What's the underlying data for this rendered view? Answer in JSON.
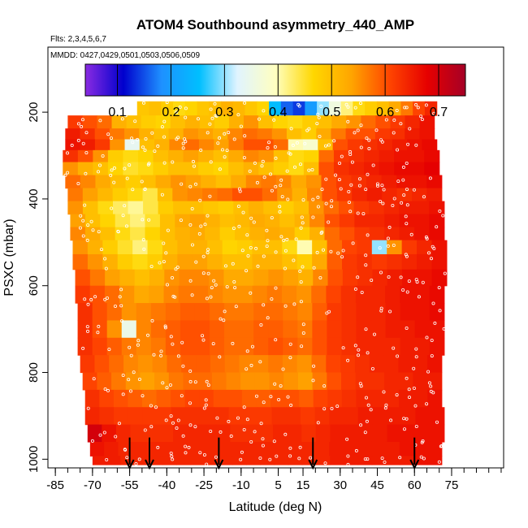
{
  "chart_data": {
    "type": "heatmap",
    "title": "ATOM4 Southbound asymmetry_440_AMP",
    "flights_label": "Flts: 2,3,4,5,6,7",
    "dates_label": "MMDD: 0427,0429,0501,0503,0506,0509",
    "xlabel": "Latitude (deg N)",
    "ylabel": "PSXC (mbar)",
    "xlim": [
      -88,
      96
    ],
    "ylim": [
      1020,
      50
    ],
    "x_ticks": [
      "-85",
      "-70",
      "-55",
      "-40",
      "-25",
      "-10",
      "5",
      "15",
      "30",
      "45",
      "60",
      "75"
    ],
    "x_tick_values": [
      -85,
      -70,
      -55,
      -40,
      -25,
      -10,
      5,
      15,
      30,
      45,
      60,
      75
    ],
    "x_minor_step": 5,
    "y_ticks": [
      "200",
      "400",
      "600",
      "800",
      "1000"
    ],
    "y_tick_values": [
      200,
      400,
      600,
      800,
      1000
    ],
    "colorbar": {
      "min": 0.04,
      "max": 0.75,
      "tick_labels": [
        "0.1",
        "0.2",
        "0.3",
        "0.4",
        "0.5",
        "0.6",
        "0.7"
      ],
      "tick_values": [
        0.1,
        0.2,
        0.3,
        0.4,
        0.5,
        0.6,
        0.7
      ],
      "colors": [
        "#8a2be2",
        "#0000cd",
        "#1e90ff",
        "#00bfff",
        "#e0f4ff",
        "#ffffc0",
        "#ffd700",
        "#ffa500",
        "#ff4500",
        "#e60000",
        "#a50026"
      ]
    },
    "layers": [
      {
        "p": 190,
        "lat_min": -52,
        "lat_max": 69,
        "values": [
          0.49,
          0.5,
          0.48,
          0.46,
          0.47,
          0.49,
          0.5,
          0.52,
          0.51,
          0.49,
          0.47,
          0.25,
          0.16,
          0.14,
          0.2,
          0.3,
          0.36,
          0.42,
          0.46,
          0.48,
          0.5,
          0.53,
          0.57,
          0.61,
          0.64
        ]
      },
      {
        "p": 225,
        "lat_min": -80,
        "lat_max": 68,
        "values": [
          0.62,
          0.6,
          0.58,
          0.52,
          0.5,
          0.48,
          0.47,
          0.5,
          0.52,
          0.5,
          0.48,
          0.52,
          0.55,
          0.5,
          0.47,
          0.46,
          0.48,
          0.5,
          0.53,
          0.55,
          0.58,
          0.6,
          0.62,
          0.64,
          0.66
        ]
      },
      {
        "p": 250,
        "lat_min": -81,
        "lat_max": 68,
        "values": [
          0.65,
          0.63,
          0.6,
          0.57,
          0.55,
          0.52,
          0.5,
          0.52,
          0.55,
          0.54,
          0.52,
          0.56,
          0.58,
          0.57,
          0.55,
          0.5,
          0.48,
          0.53,
          0.57,
          0.6,
          0.6,
          0.62,
          0.63,
          0.65,
          0.66
        ]
      },
      {
        "p": 275,
        "lat_min": -81,
        "lat_max": 69,
        "values": [
          0.66,
          0.65,
          0.62,
          0.55,
          0.34,
          0.5,
          0.52,
          0.56,
          0.58,
          0.56,
          0.54,
          0.57,
          0.6,
          0.6,
          0.58,
          0.4,
          0.38,
          0.5,
          0.6,
          0.62,
          0.63,
          0.64,
          0.65,
          0.66,
          0.67
        ]
      },
      {
        "p": 300,
        "lat_min": -82,
        "lat_max": 70,
        "values": [
          0.63,
          0.6,
          0.55,
          0.48,
          0.46,
          0.47,
          0.5,
          0.52,
          0.54,
          0.52,
          0.5,
          0.53,
          0.56,
          0.55,
          0.5,
          0.46,
          0.47,
          0.58,
          0.62,
          0.63,
          0.64,
          0.65,
          0.66,
          0.66,
          0.67
        ]
      },
      {
        "p": 330,
        "lat_min": -82,
        "lat_max": 70,
        "values": [
          0.55,
          0.52,
          0.5,
          0.47,
          0.45,
          0.46,
          0.48,
          0.5,
          0.5,
          0.48,
          0.47,
          0.5,
          0.52,
          0.5,
          0.48,
          0.46,
          0.5,
          0.6,
          0.63,
          0.64,
          0.65,
          0.66,
          0.67,
          0.67,
          0.68
        ]
      },
      {
        "p": 360,
        "lat_min": -81,
        "lat_max": 71,
        "values": [
          0.58,
          0.56,
          0.53,
          0.5,
          0.48,
          0.5,
          0.53,
          0.55,
          0.54,
          0.52,
          0.5,
          0.53,
          0.56,
          0.57,
          0.56,
          0.53,
          0.55,
          0.6,
          0.62,
          0.63,
          0.64,
          0.65,
          0.66,
          0.66,
          0.67
        ]
      },
      {
        "p": 390,
        "lat_min": -80,
        "lat_max": 71,
        "values": [
          0.57,
          0.54,
          0.51,
          0.48,
          0.46,
          0.44,
          0.5,
          0.55,
          0.56,
          0.57,
          0.58,
          0.6,
          0.6,
          0.58,
          0.55,
          0.52,
          0.56,
          0.6,
          0.62,
          0.64,
          0.65,
          0.64,
          0.63,
          0.64,
          0.65
        ]
      },
      {
        "p": 420,
        "lat_min": -80,
        "lat_max": 72,
        "values": [
          0.55,
          0.5,
          0.46,
          0.43,
          0.41,
          0.44,
          0.48,
          0.5,
          0.5,
          0.49,
          0.48,
          0.5,
          0.52,
          0.5,
          0.48,
          0.5,
          0.55,
          0.58,
          0.6,
          0.62,
          0.63,
          0.64,
          0.65,
          0.65,
          0.66
        ]
      },
      {
        "p": 450,
        "lat_min": -79,
        "lat_max": 72,
        "values": [
          0.54,
          0.5,
          0.47,
          0.44,
          0.42,
          0.45,
          0.5,
          0.53,
          0.54,
          0.52,
          0.5,
          0.51,
          0.53,
          0.52,
          0.5,
          0.52,
          0.56,
          0.6,
          0.62,
          0.64,
          0.64,
          0.65,
          0.66,
          0.66,
          0.67
        ]
      },
      {
        "p": 480,
        "lat_min": -79,
        "lat_max": 72,
        "values": [
          0.56,
          0.53,
          0.5,
          0.46,
          0.44,
          0.47,
          0.5,
          0.52,
          0.53,
          0.51,
          0.48,
          0.5,
          0.52,
          0.53,
          0.52,
          0.48,
          0.52,
          0.58,
          0.6,
          0.62,
          0.63,
          0.64,
          0.65,
          0.66,
          0.67
        ]
      },
      {
        "p": 510,
        "lat_min": -78,
        "lat_max": 73,
        "values": [
          0.55,
          0.52,
          0.48,
          0.45,
          0.42,
          0.46,
          0.5,
          0.52,
          0.52,
          0.5,
          0.47,
          0.48,
          0.5,
          0.5,
          0.46,
          0.4,
          0.5,
          0.58,
          0.61,
          0.62,
          0.3,
          0.55,
          0.62,
          0.64,
          0.66
        ]
      },
      {
        "p": 545,
        "lat_min": -78,
        "lat_max": 73,
        "values": [
          0.58,
          0.55,
          0.52,
          0.48,
          0.46,
          0.48,
          0.52,
          0.54,
          0.54,
          0.52,
          0.5,
          0.5,
          0.52,
          0.52,
          0.5,
          0.48,
          0.53,
          0.59,
          0.62,
          0.63,
          0.62,
          0.63,
          0.64,
          0.65,
          0.66
        ]
      },
      {
        "p": 580,
        "lat_min": -77,
        "lat_max": 73,
        "values": [
          0.6,
          0.57,
          0.54,
          0.52,
          0.5,
          0.52,
          0.55,
          0.56,
          0.56,
          0.55,
          0.53,
          0.53,
          0.54,
          0.55,
          0.54,
          0.52,
          0.56,
          0.6,
          0.62,
          0.63,
          0.64,
          0.65,
          0.66,
          0.66,
          0.67
        ]
      },
      {
        "p": 620,
        "lat_min": -77,
        "lat_max": 72,
        "values": [
          0.62,
          0.6,
          0.58,
          0.55,
          0.53,
          0.54,
          0.56,
          0.57,
          0.57,
          0.56,
          0.55,
          0.55,
          0.56,
          0.57,
          0.56,
          0.55,
          0.58,
          0.61,
          0.63,
          0.64,
          0.64,
          0.65,
          0.66,
          0.66,
          0.67
        ]
      },
      {
        "p": 660,
        "lat_min": -76,
        "lat_max": 72,
        "values": [
          0.63,
          0.6,
          0.58,
          0.55,
          0.56,
          0.57,
          0.58,
          0.59,
          0.59,
          0.58,
          0.57,
          0.57,
          0.58,
          0.58,
          0.57,
          0.56,
          0.59,
          0.62,
          0.63,
          0.64,
          0.64,
          0.65,
          0.66,
          0.66,
          0.67
        ]
      },
      {
        "p": 700,
        "lat_min": -76,
        "lat_max": 72,
        "values": [
          0.63,
          0.6,
          0.55,
          0.35,
          0.56,
          0.58,
          0.59,
          0.6,
          0.6,
          0.59,
          0.58,
          0.58,
          0.59,
          0.59,
          0.58,
          0.57,
          0.6,
          0.62,
          0.63,
          0.64,
          0.64,
          0.65,
          0.65,
          0.66,
          0.66
        ]
      },
      {
        "p": 740,
        "lat_min": -76,
        "lat_max": 72,
        "values": [
          0.63,
          0.61,
          0.59,
          0.57,
          0.56,
          0.57,
          0.59,
          0.6,
          0.6,
          0.59,
          0.58,
          0.58,
          0.59,
          0.6,
          0.59,
          0.58,
          0.6,
          0.62,
          0.63,
          0.64,
          0.64,
          0.64,
          0.65,
          0.65,
          0.66
        ]
      },
      {
        "p": 780,
        "lat_min": -75,
        "lat_max": 71,
        "values": [
          0.62,
          0.6,
          0.58,
          0.56,
          0.55,
          0.56,
          0.58,
          0.59,
          0.59,
          0.58,
          0.57,
          0.56,
          0.56,
          0.57,
          0.56,
          0.55,
          0.58,
          0.61,
          0.62,
          0.63,
          0.64,
          0.64,
          0.65,
          0.65,
          0.66
        ]
      },
      {
        "p": 820,
        "lat_min": -74,
        "lat_max": 71,
        "values": [
          0.61,
          0.59,
          0.57,
          0.55,
          0.54,
          0.55,
          0.57,
          0.58,
          0.58,
          0.57,
          0.56,
          0.55,
          0.55,
          0.56,
          0.55,
          0.54,
          0.57,
          0.6,
          0.62,
          0.63,
          0.63,
          0.64,
          0.64,
          0.65,
          0.65
        ]
      },
      {
        "p": 860,
        "lat_min": -73,
        "lat_max": 71,
        "values": [
          0.63,
          0.61,
          0.6,
          0.59,
          0.58,
          0.59,
          0.6,
          0.61,
          0.61,
          0.6,
          0.6,
          0.59,
          0.59,
          0.6,
          0.6,
          0.59,
          0.61,
          0.62,
          0.63,
          0.64,
          0.64,
          0.64,
          0.65,
          0.65,
          0.66
        ]
      },
      {
        "p": 900,
        "lat_min": -73,
        "lat_max": 72,
        "values": [
          0.64,
          0.63,
          0.62,
          0.62,
          0.62,
          0.62,
          0.63,
          0.63,
          0.63,
          0.63,
          0.62,
          0.62,
          0.62,
          0.63,
          0.63,
          0.62,
          0.63,
          0.64,
          0.64,
          0.65,
          0.65,
          0.65,
          0.65,
          0.66,
          0.66
        ]
      },
      {
        "p": 940,
        "lat_min": -72,
        "lat_max": 72,
        "values": [
          0.7,
          0.66,
          0.64,
          0.63,
          0.63,
          0.63,
          0.64,
          0.64,
          0.64,
          0.64,
          0.63,
          0.63,
          0.63,
          0.64,
          0.64,
          0.63,
          0.64,
          0.65,
          0.65,
          0.65,
          0.65,
          0.66,
          0.66,
          0.66,
          0.66
        ]
      },
      {
        "p": 980,
        "lat_min": -71,
        "lat_max": 71,
        "values": [
          0.66,
          0.65,
          0.64,
          0.64,
          0.64,
          0.64,
          0.64,
          0.64,
          0.64,
          0.64,
          0.64,
          0.64,
          0.64,
          0.64,
          0.64,
          0.64,
          0.64,
          0.65,
          0.65,
          0.65,
          0.65,
          0.65,
          0.66,
          0.66,
          0.66
        ]
      },
      {
        "p": 1005,
        "lat_min": -70,
        "lat_max": 71,
        "values": [
          0.65,
          0.65,
          0.64,
          0.64,
          0.64,
          0.64,
          0.64,
          0.64,
          0.64,
          0.64,
          0.64,
          0.64,
          0.64,
          0.64,
          0.64,
          0.64,
          0.64,
          0.65,
          0.65,
          0.65,
          0.65,
          0.65,
          0.65,
          0.66,
          0.66
        ]
      }
    ],
    "arrows": [
      {
        "lat": -55,
        "p_from": 950,
        "p_to": 1020
      },
      {
        "lat": -47,
        "p_from": 950,
        "p_to": 1020
      },
      {
        "lat": -19,
        "p_from": 950,
        "p_to": 1020
      },
      {
        "lat": 19,
        "p_from": 950,
        "p_to": 1020
      },
      {
        "lat": 60,
        "p_from": 950,
        "p_to": 1020
      }
    ],
    "grid": false,
    "legend": "colorbar top"
  }
}
